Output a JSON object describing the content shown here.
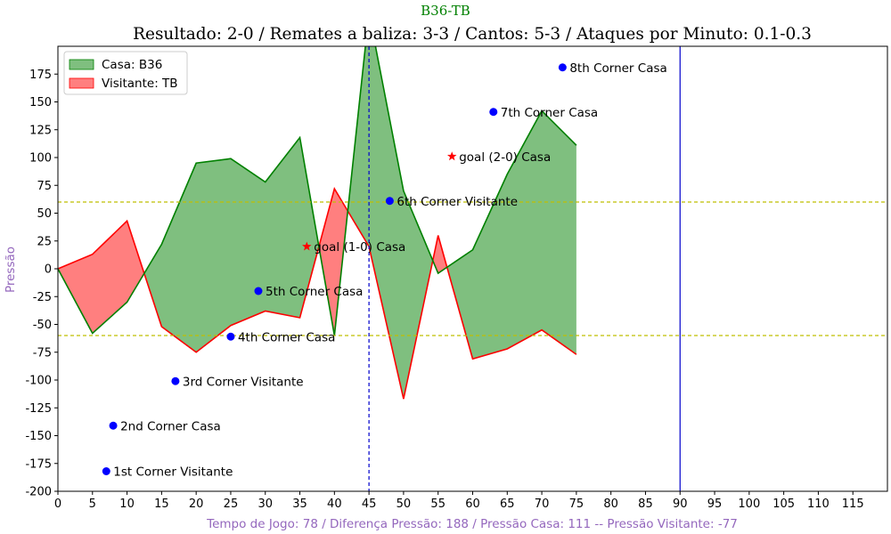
{
  "suptitle": "B36-TB",
  "chart_data": {
    "type": "area",
    "title": "Resultado: 2-0 / Remates a baliza: 3-3 / Cantos: 5-3 / Ataques por Minuto: 0.1-0.3",
    "xlabel": "Tempo de Jogo: 78 / Diferença Pressão: 188 / Pressão Casa: 111 -- Pressão Visitante: -77",
    "ylabel": "Pressão",
    "xlim": [
      0,
      120
    ],
    "ylim": [
      -200,
      200
    ],
    "xticks": [
      0,
      5,
      10,
      15,
      20,
      25,
      30,
      35,
      40,
      45,
      50,
      55,
      60,
      65,
      70,
      75,
      80,
      85,
      90,
      95,
      100,
      105,
      110,
      115
    ],
    "yticks": [
      -200,
      -175,
      -150,
      -125,
      -100,
      -75,
      -50,
      -25,
      0,
      25,
      50,
      75,
      100,
      125,
      150,
      175
    ],
    "grid": false,
    "legend_position": "top-left",
    "x": [
      0,
      5,
      10,
      15,
      20,
      25,
      30,
      35,
      40,
      45,
      50,
      55,
      60,
      65,
      70,
      75
    ],
    "series": [
      {
        "name": "Casa: B36",
        "color": "#008000",
        "fill": "#7fbf7f",
        "values": [
          0,
          -58,
          -30,
          22,
          95,
          99,
          78,
          118,
          -60,
          230,
          70,
          -4,
          17,
          85,
          142,
          111
        ]
      },
      {
        "name": "Visitante: TB",
        "color": "#ff0000",
        "fill": "#ff7f7f",
        "values": [
          0,
          13,
          43,
          -52,
          -75,
          -51,
          -38,
          -44,
          72,
          20,
          -117,
          30,
          -81,
          -72,
          -55,
          -77
        ]
      }
    ],
    "hlines": [
      {
        "y": 60,
        "color": "#bfbf00",
        "style": "dashed"
      },
      {
        "y": -60,
        "color": "#bfbf00",
        "style": "dashed"
      }
    ],
    "vlines": [
      {
        "x": 45,
        "color": "#0000cc",
        "style": "dashed"
      },
      {
        "x": 90,
        "color": "#0000cc",
        "style": "solid"
      }
    ],
    "annotations": [
      {
        "x": 7,
        "y": -182,
        "label": "1st Corner Visitante",
        "marker": "dot",
        "color": "#0000ff"
      },
      {
        "x": 8,
        "y": -141,
        "label": "2nd Corner Casa",
        "marker": "dot",
        "color": "#0000ff"
      },
      {
        "x": 17,
        "y": -101,
        "label": "3rd Corner Visitante",
        "marker": "dot",
        "color": "#0000ff"
      },
      {
        "x": 25,
        "y": -61,
        "label": "4th Corner Casa",
        "marker": "dot",
        "color": "#0000ff"
      },
      {
        "x": 29,
        "y": -20,
        "label": "5th Corner Casa",
        "marker": "dot",
        "color": "#0000ff"
      },
      {
        "x": 36,
        "y": 20,
        "label": "goal (1-0) Casa",
        "marker": "star",
        "color": "#ff0000"
      },
      {
        "x": 48,
        "y": 61,
        "label": "6th Corner Visitante",
        "marker": "dot",
        "color": "#0000ff"
      },
      {
        "x": 57,
        "y": 101,
        "label": "goal (2-0) Casa",
        "marker": "star",
        "color": "#ff0000"
      },
      {
        "x": 63,
        "y": 141,
        "label": "7th Corner Casa",
        "marker": "dot",
        "color": "#0000ff"
      },
      {
        "x": 73,
        "y": 181,
        "label": "8th Corner Casa",
        "marker": "dot",
        "color": "#0000ff"
      }
    ]
  }
}
